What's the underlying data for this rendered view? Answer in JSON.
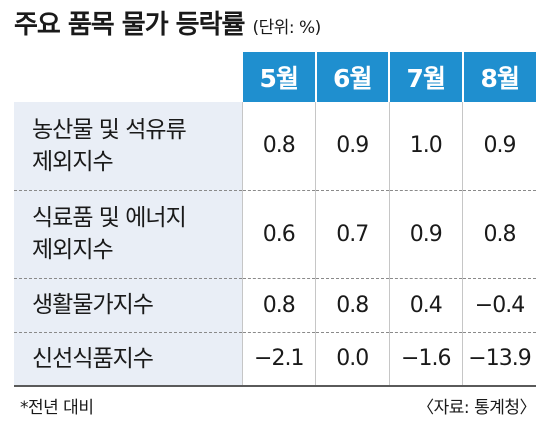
{
  "title": "주요 품목 물가 등락률",
  "unit": "(단위: %)",
  "footnote": "*전년 대비",
  "source": "〈자료: 통계청〉",
  "chart_data": {
    "type": "table",
    "title": "주요 품목 물가 등락률",
    "unit": "(단위: %)",
    "columns": [
      "5월",
      "6월",
      "7월",
      "8월"
    ],
    "rows": [
      {
        "label_lines": [
          "농산물 및 석유류",
          "제외지수"
        ],
        "values": [
          "0.8",
          "0.9",
          "1.0",
          "0.9"
        ]
      },
      {
        "label_lines": [
          "식료품 및 에너지",
          "제외지수"
        ],
        "values": [
          "0.6",
          "0.7",
          "0.9",
          "0.8"
        ]
      },
      {
        "label_lines": [
          "생활물가지수"
        ],
        "values": [
          "0.8",
          "0.8",
          "0.4",
          "−0.4"
        ]
      },
      {
        "label_lines": [
          "신선식품지수"
        ],
        "values": [
          "−2.1",
          "0.0",
          "−1.6",
          "−13.9"
        ]
      }
    ]
  },
  "colors": {
    "header_bg": "#1f8fcf",
    "header_text": "#ffffff",
    "label_bg": "#e9eef6"
  }
}
